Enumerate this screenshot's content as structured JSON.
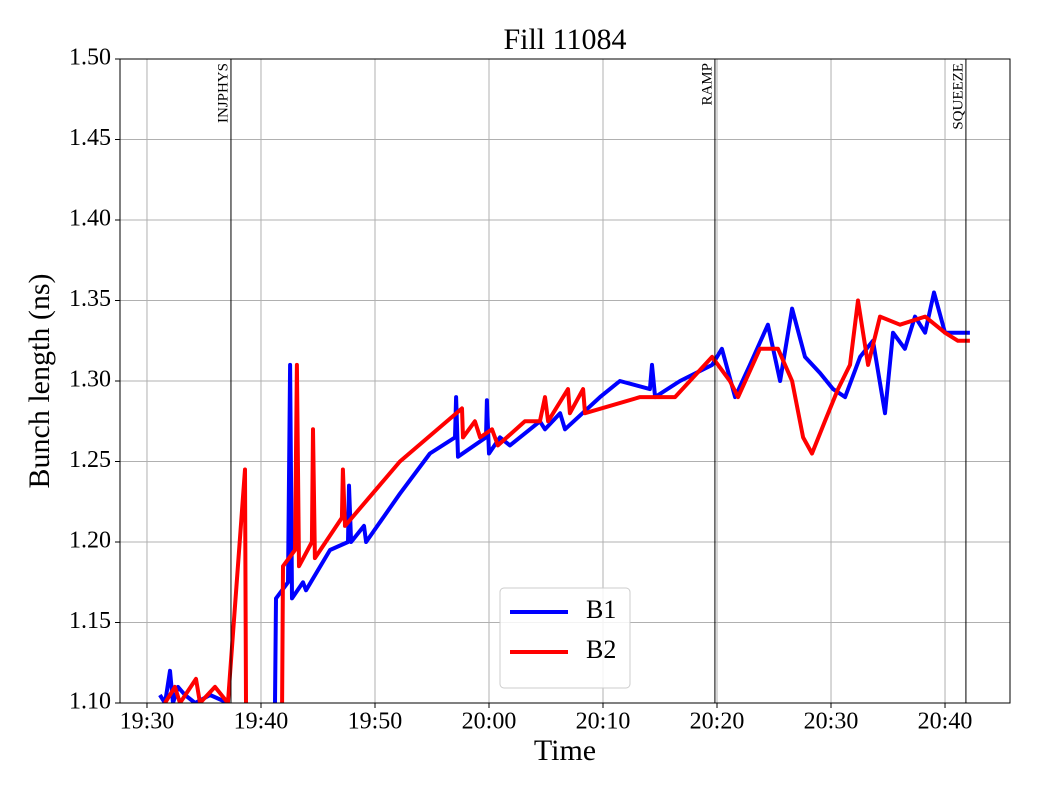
{
  "chart_data": {
    "type": "line",
    "title": "Fill 11084",
    "x_label": "Time",
    "y_label": "Bunch length (ns)",
    "xlim": [
      "19:27:38",
      "20:45:42"
    ],
    "xticks": [
      "19:30",
      "19:40",
      "19:50",
      "20:00",
      "20:10",
      "20:20",
      "20:30",
      "20:40"
    ],
    "ylim": [
      1.1,
      1.5
    ],
    "yticks": [
      {
        "value": 1.1,
        "label": "1.10"
      },
      1.15,
      {
        "value": 1.2,
        "label": "1.20"
      },
      1.25,
      {
        "value": 1.3,
        "label": "1.30"
      },
      1.35,
      {
        "value": 1.4,
        "label": "1.40"
      },
      1.45,
      {
        "value": 1.5,
        "label": "1.50"
      }
    ],
    "grid": true,
    "legend": "lower center",
    "annotations": [
      {
        "label": "INJPHYS",
        "x": "19:37:22"
      },
      {
        "label": "RAMP",
        "x": "20:19:49"
      },
      {
        "label": "SQUEEZE",
        "x": "20:41:50"
      }
    ],
    "series": [
      {
        "name": "B1",
        "color": "#0000ff",
        "x": [
          "19:31:08",
          "19:31:35",
          "19:32:01",
          "19:32:17",
          "19:32:43",
          "19:33:20",
          "19:34:13",
          "19:35:32",
          "19:37:06",
          null,
          "19:41:14",
          "19:41:19",
          "19:42:22",
          "19:42:33",
          "19:42:43",
          "19:43:41",
          "19:43:57",
          "19:46:03",
          "19:47:38",
          "19:47:43",
          "19:47:54",
          "19:49:02",
          "19:49:13",
          "19:52:11",
          "19:54:49",
          "19:57:01",
          "19:57:07",
          "19:57:17",
          "19:59:44",
          "19:59:49",
          "20:00:00",
          "20:00:58",
          "20:01:50",
          "20:03:36",
          "20:04:28",
          "20:04:55",
          "20:06:14",
          "20:06:40",
          "20:09:44",
          "20:11:29",
          "20:14:07",
          "20:14:18",
          "20:14:34",
          "20:16:45",
          "20:19:34",
          "20:20:26",
          "20:21:35",
          "20:22:53",
          "20:24:28",
          "20:25:32",
          "20:26:35",
          "20:27:43",
          "20:29:02",
          "20:30:11",
          "20:31:14",
          "20:32:33",
          "20:33:41",
          "20:34:44",
          "20:35:26",
          "20:36:29",
          "20:37:22",
          "20:38:15",
          "20:39:02",
          "20:40:00",
          "20:42:11"
        ],
        "values": [
          1.105,
          1.1,
          1.12,
          1.1,
          1.11,
          1.105,
          1.1,
          1.105,
          1.1,
          null,
          1.1,
          1.165,
          1.175,
          1.31,
          1.165,
          1.175,
          1.17,
          1.195,
          1.2,
          1.235,
          1.2,
          1.21,
          1.2,
          1.23,
          1.255,
          1.265,
          1.29,
          1.253,
          1.265,
          1.288,
          1.255,
          1.265,
          1.26,
          1.27,
          1.275,
          1.27,
          1.28,
          1.27,
          1.29,
          1.3,
          1.295,
          1.31,
          1.29,
          1.3,
          1.31,
          1.32,
          1.29,
          1.31,
          1.335,
          1.3,
          1.345,
          1.315,
          1.305,
          1.295,
          1.29,
          1.315,
          1.325,
          1.28,
          1.33,
          1.32,
          1.34,
          1.33,
          1.355,
          1.33,
          1.33
        ]
      },
      {
        "name": "B2",
        "color": "#ff0000",
        "x": [
          "19:31:35",
          "19:32:27",
          "19:32:54",
          "19:34:18",
          "19:34:39",
          "19:35:58",
          "19:37:06",
          "19:38:36",
          "19:38:41",
          null,
          "19:41:51",
          "19:41:56",
          "19:42:59",
          "19:43:09",
          "19:43:20",
          "19:44:28",
          "19:44:34",
          "19:44:44",
          "19:47:06",
          "19:47:11",
          "19:47:22",
          "19:52:11",
          "19:57:38",
          "19:57:43",
          "19:58:46",
          "19:59:13",
          "20:00:16",
          "20:00:47",
          "20:03:09",
          "20:04:28",
          "20:04:55",
          "20:05:11",
          "20:06:56",
          "20:07:06",
          "20:08:15",
          "20:08:25",
          "20:13:15",
          "20:16:19",
          "20:19:34",
          "20:21:08",
          "20:21:51",
          "20:23:46",
          "20:25:21",
          "20:26:35",
          "20:27:33",
          "20:28:20",
          "20:29:28",
          "20:30:37",
          "20:31:40",
          "20:32:22",
          "20:33:15",
          "20:34:18",
          "20:36:03",
          "20:38:15",
          "20:40:00",
          "20:41:08",
          "20:42:11"
        ],
        "values": [
          1.1,
          1.11,
          1.1,
          1.115,
          1.1,
          1.11,
          1.1,
          1.245,
          1.1,
          null,
          1.1,
          1.185,
          1.195,
          1.31,
          1.185,
          1.2,
          1.27,
          1.19,
          1.215,
          1.245,
          1.21,
          1.25,
          1.283,
          1.265,
          1.275,
          1.265,
          1.27,
          1.26,
          1.275,
          1.275,
          1.29,
          1.275,
          1.295,
          1.28,
          1.295,
          1.28,
          1.29,
          1.29,
          1.315,
          1.3,
          1.29,
          1.32,
          1.32,
          1.3,
          1.265,
          1.255,
          1.275,
          1.295,
          1.31,
          1.35,
          1.31,
          1.34,
          1.335,
          1.34,
          1.33,
          1.325,
          1.325
        ]
      }
    ]
  }
}
